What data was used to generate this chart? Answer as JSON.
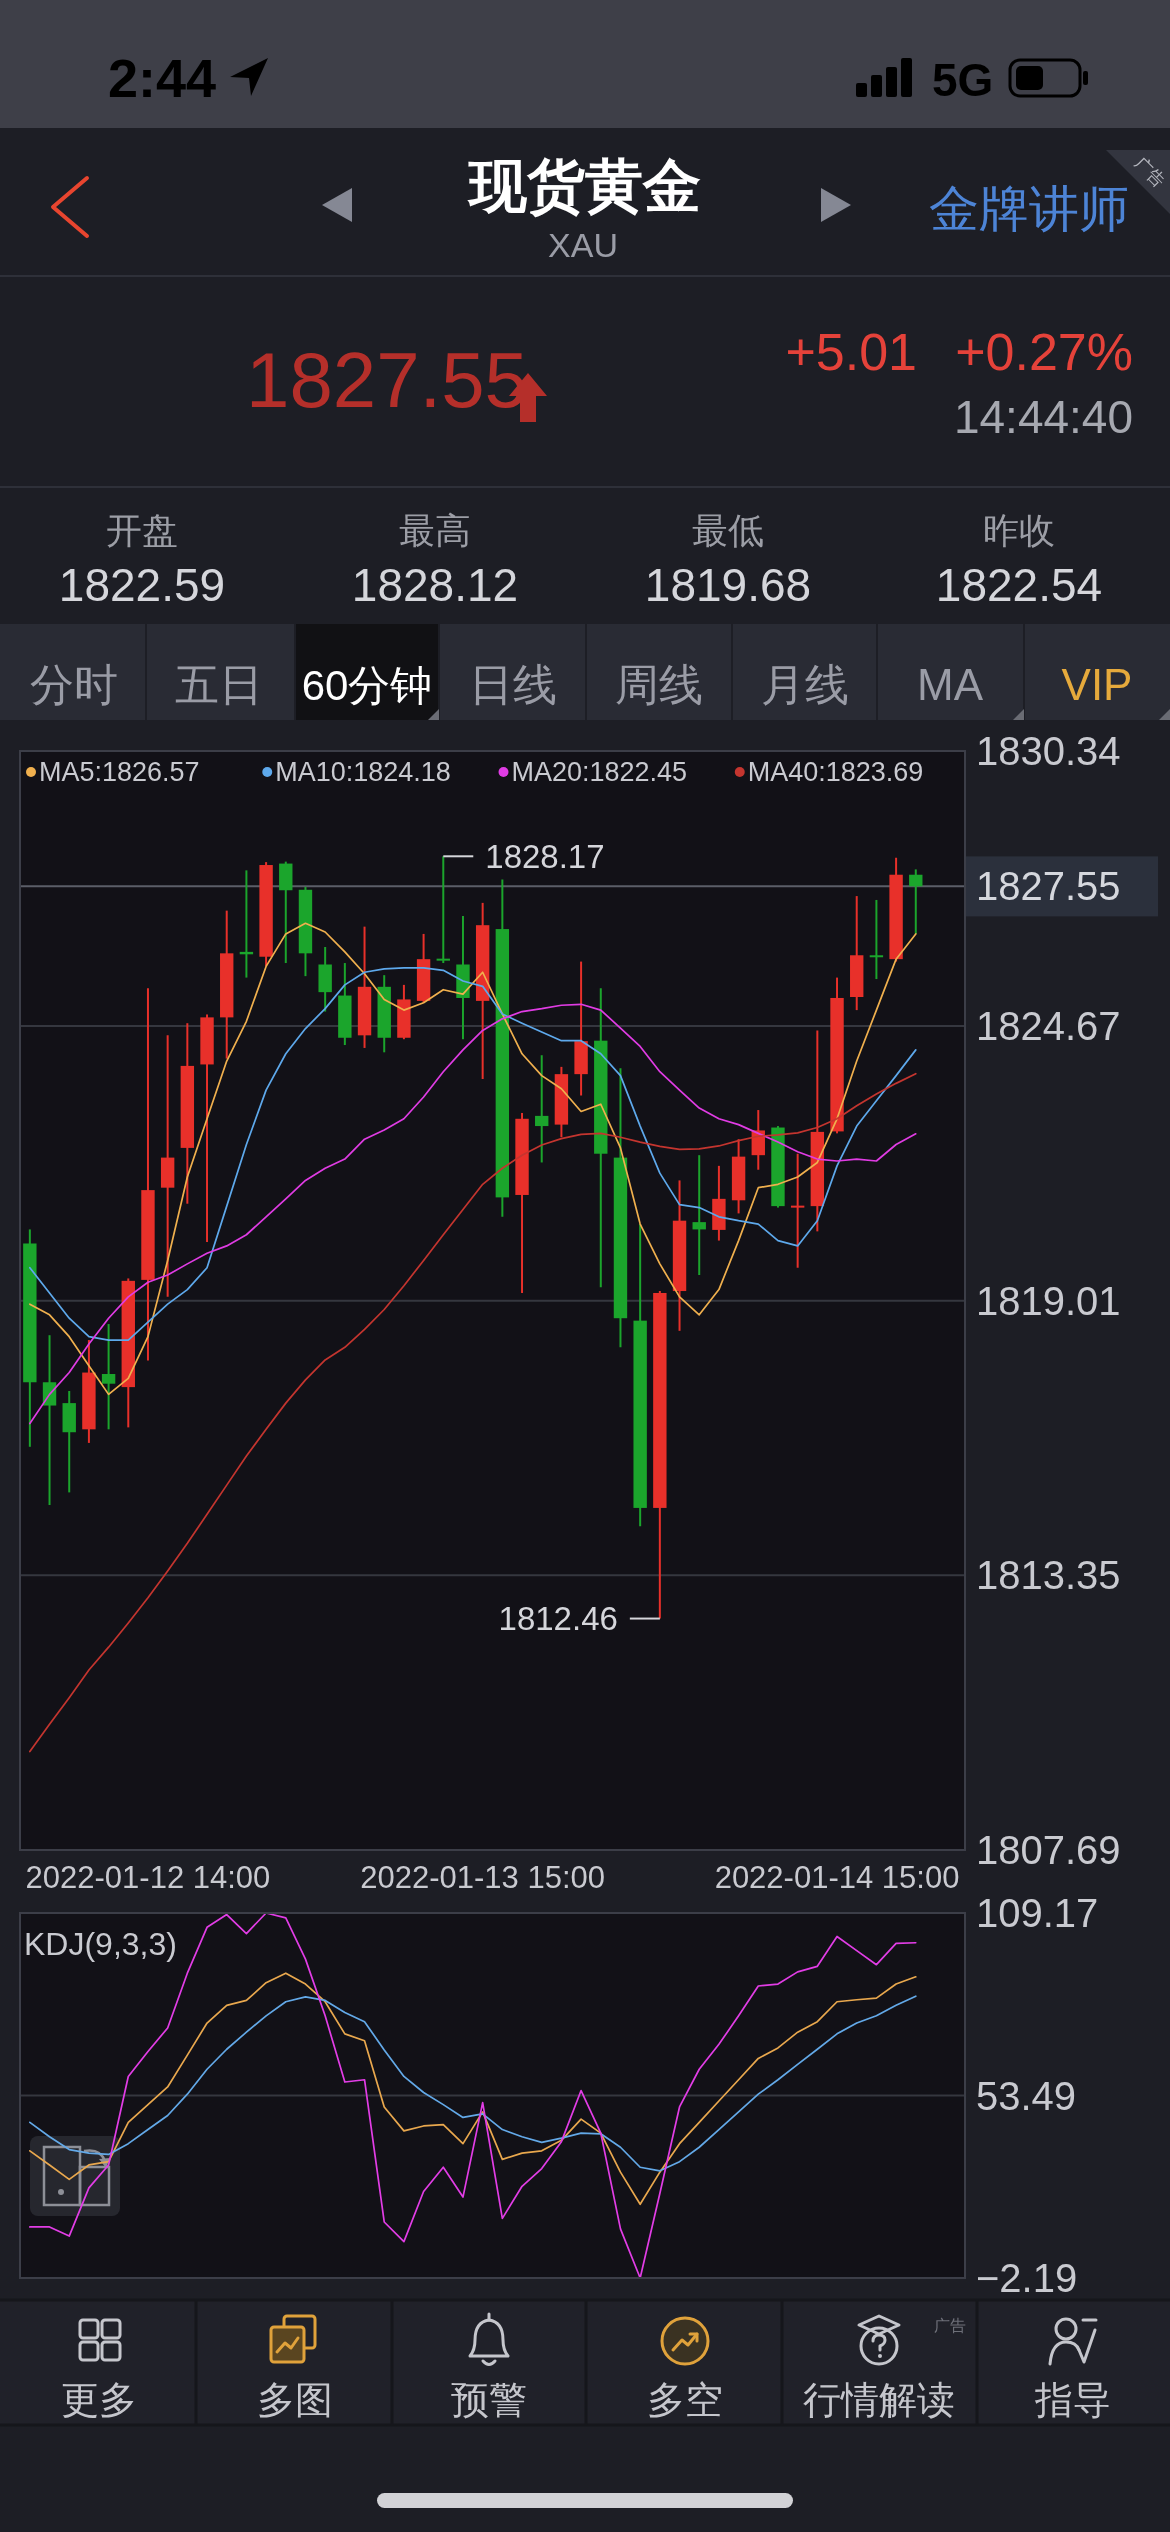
{
  "chart_data": [
    {
      "type": "other",
      "title": "现货黄金",
      "subtitle": "XAU",
      "annotations": [
        "2:44",
        "5G",
        "金牌讲师",
        "广告",
        "1827.55",
        "+5.01",
        "+0.27%",
        "14:44:40",
        "开盘",
        "1822.59",
        "最高",
        "1828.12",
        "最低",
        "1819.68",
        "昨收",
        "1822.54",
        "分时",
        "五日",
        "60分钟",
        "日线",
        "周线",
        "月线",
        "MA",
        "VIP"
      ]
    },
    {
      "type": "candlestick",
      "categories": [
        null,
        null,
        null,
        null,
        null,
        null,
        "2022-01-12 14:00",
        null,
        null,
        null,
        null,
        null,
        null,
        null,
        null,
        null,
        null,
        null,
        null,
        null,
        null,
        null,
        null,
        "2022-01-13 15:00",
        null,
        null,
        null,
        null,
        null,
        null,
        null,
        null,
        null,
        null,
        null,
        null,
        null,
        null,
        null,
        null,
        null,
        "2022-01-14 15:00",
        null,
        null,
        null,
        null
      ],
      "ohlc": [
        [
          1820.19,
          1820.48,
          1816.0,
          1817.33
        ],
        [
          1817.33,
          1818.3,
          1814.8,
          1816.85
        ],
        [
          1816.9,
          1817.15,
          1815.06,
          1816.3
        ],
        [
          1816.36,
          1818.2,
          1816.08,
          1817.53
        ],
        [
          1817.5,
          1818.53,
          1816.36,
          1817.3
        ],
        [
          1817.23,
          1819.47,
          1816.4,
          1819.42
        ],
        [
          1819.44,
          1825.45,
          1817.78,
          1821.29
        ],
        [
          1821.34,
          1824.48,
          1819.09,
          1821.96
        ],
        [
          1822.16,
          1824.73,
          1821.01,
          1823.85
        ],
        [
          1823.88,
          1824.91,
          1820.22,
          1824.85
        ],
        [
          1824.85,
          1827.05,
          1824.0,
          1826.17
        ],
        [
          1826.2,
          1827.88,
          1825.67,
          1826.15
        ],
        [
          1826.1,
          1828.05,
          1825.9,
          1827.99
        ],
        [
          1828.02,
          1828.06,
          1825.97,
          1827.47
        ],
        [
          1827.48,
          1827.54,
          1825.7,
          1826.17
        ],
        [
          1825.94,
          1826.3,
          1824.97,
          1825.37
        ],
        [
          1825.3,
          1825.97,
          1824.28,
          1824.43
        ],
        [
          1824.48,
          1826.72,
          1824.22,
          1825.48
        ],
        [
          1825.48,
          1825.72,
          1824.13,
          1824.43
        ],
        [
          1824.43,
          1825.52,
          1824.4,
          1825.22
        ],
        [
          1825.19,
          1826.57,
          1825.15,
          1826.05
        ],
        [
          1826.06,
          1828.17,
          1825.97,
          1826.03
        ],
        [
          1825.94,
          1826.94,
          1824.4,
          1825.25
        ],
        [
          1825.19,
          1827.21,
          1823.58,
          1826.75
        ],
        [
          1826.67,
          1827.69,
          1820.74,
          1821.14
        ],
        [
          1821.19,
          1822.88,
          1819.17,
          1822.76
        ],
        [
          1822.82,
          1824.07,
          1821.86,
          1822.61
        ],
        [
          1822.64,
          1823.83,
          1822.38,
          1823.68
        ],
        [
          1823.68,
          1826.0,
          1823.24,
          1824.36
        ],
        [
          1824.37,
          1825.45,
          1819.29,
          1822.04
        ],
        [
          1821.96,
          1823.8,
          1818.05,
          1818.65
        ],
        [
          1818.6,
          1820.59,
          1814.36,
          1814.74
        ],
        [
          1814.74,
          1819.21,
          1812.46,
          1819.17
        ],
        [
          1819.21,
          1821.49,
          1818.39,
          1820.66
        ],
        [
          1820.63,
          1822.01,
          1819.54,
          1820.48
        ],
        [
          1820.47,
          1821.79,
          1820.25,
          1821.11
        ],
        [
          1821.08,
          1822.34,
          1820.81,
          1821.98
        ],
        [
          1822.01,
          1822.94,
          1821.71,
          1822.52
        ],
        [
          1822.58,
          1822.61,
          1820.93,
          1820.96
        ],
        [
          1820.95,
          1822.04,
          1819.69,
          1820.97
        ],
        [
          1820.96,
          1824.58,
          1820.44,
          1822.49
        ],
        [
          1822.5,
          1825.67,
          1822.46,
          1825.25
        ],
        [
          1825.27,
          1827.35,
          1825.0,
          1826.13
        ],
        [
          1826.13,
          1827.27,
          1825.64,
          1826.1
        ],
        [
          1826.05,
          1828.14,
          1826.0,
          1827.79
        ],
        [
          1827.79,
          1827.9,
          1826.57,
          1827.55
        ]
      ],
      "series": [
        {
          "name": "MA5:1826.57",
          "color": "#f0b04e",
          "type": "line",
          "values": [
            1818.94,
            1818.72,
            1818.27,
            1817.67,
            1817.08,
            1817.41,
            1818.27,
            1819.84,
            1821.56,
            1822.76,
            1823.95,
            1824.77,
            1825.9,
            1826.57,
            1826.79,
            1826.61,
            1826.2,
            1825.75,
            1825.22,
            1825.0,
            1825.15,
            1825.42,
            1825.33,
            1825.78,
            1824.92,
            1824.1,
            1823.65,
            1823.38,
            1822.91,
            1823.06,
            1822.16,
            1820.59,
            1819.77,
            1819.09,
            1818.72,
            1819.24,
            1820.25,
            1821.34,
            1821.41,
            1821.56,
            1821.86,
            1822.76,
            1823.95,
            1825.0,
            1826.05,
            1826.57
          ]
        },
        {
          "name": "MA10:1824.18",
          "color": "#5ea9ec",
          "type": "line",
          "values": [
            1819.69,
            1819.17,
            1818.65,
            1818.27,
            1818.2,
            1818.2,
            1818.57,
            1818.94,
            1819.24,
            1819.69,
            1820.96,
            1822.23,
            1823.35,
            1824.1,
            1824.62,
            1825.03,
            1825.52,
            1825.78,
            1825.85,
            1825.87,
            1825.87,
            1825.82,
            1825.6,
            1825.49,
            1824.92,
            1824.73,
            1824.55,
            1824.37,
            1824.37,
            1824.1,
            1823.65,
            1822.61,
            1821.64,
            1820.99,
            1820.93,
            1820.74,
            1820.66,
            1820.59,
            1820.25,
            1820.14,
            1820.66,
            1821.79,
            1822.61,
            1823.13,
            1823.65,
            1824.18
          ]
        },
        {
          "name": "MA20:1822.45",
          "color": "#e03ce4",
          "type": "line",
          "values": [
            1816.48,
            1817.08,
            1817.53,
            1818.12,
            1818.65,
            1819.09,
            1819.39,
            1819.54,
            1819.77,
            1819.99,
            1820.14,
            1820.37,
            1820.74,
            1821.11,
            1821.49,
            1821.74,
            1821.93,
            1822.34,
            1822.53,
            1822.76,
            1823.21,
            1823.73,
            1824.18,
            1824.58,
            1824.82,
            1824.97,
            1825.03,
            1825.1,
            1825.12,
            1825.0,
            1824.63,
            1824.25,
            1823.73,
            1823.35,
            1822.98,
            1822.76,
            1822.64,
            1822.46,
            1822.28,
            1822.08,
            1821.93,
            1821.89,
            1821.93,
            1821.89,
            1822.23,
            1822.45
          ]
        },
        {
          "name": "MA40:1823.69",
          "color": "#c4352f",
          "type": "line",
          "values": [
            1809.72,
            1810.28,
            1810.83,
            1811.4,
            1811.87,
            1812.37,
            1812.89,
            1813.44,
            1814.01,
            1814.61,
            1815.21,
            1815.81,
            1816.36,
            1816.9,
            1817.38,
            1817.79,
            1818.05,
            1818.42,
            1818.83,
            1819.32,
            1819.84,
            1820.37,
            1820.89,
            1821.41,
            1821.74,
            1822.01,
            1822.22,
            1822.35,
            1822.44,
            1822.46,
            1822.38,
            1822.28,
            1822.19,
            1822.13,
            1822.14,
            1822.2,
            1822.31,
            1822.4,
            1822.43,
            1822.47,
            1822.58,
            1822.76,
            1823.03,
            1823.27,
            1823.49,
            1823.69
          ]
        }
      ],
      "ylim": [
        1807.69,
        1830.34
      ],
      "yticks": [
        1830.34,
        1824.67,
        1819.01,
        1813.35,
        1807.69
      ],
      "grid": "y",
      "legend": "top",
      "ref_lines": [
        {
          "axis": "y",
          "value": 1827.55,
          "label": "1827.55",
          "color": "#5b5e68"
        }
      ],
      "annotations": [
        "1828.17",
        "1812.46"
      ]
    },
    {
      "type": "line",
      "title": "KDJ(9,3,3)",
      "categories": [
        null,
        null,
        null,
        null,
        null,
        null,
        null,
        null,
        null,
        null,
        null,
        null,
        null,
        null,
        null,
        null,
        null,
        null,
        null,
        null,
        null,
        null,
        null,
        null,
        null,
        null,
        null,
        null,
        null,
        null,
        null,
        null,
        null,
        null,
        null,
        null,
        null,
        null,
        null,
        null,
        null,
        null,
        null,
        null,
        null,
        null
      ],
      "series": [
        {
          "color": "#e9a84e",
          "values": [
            36.6,
            32.3,
            27.9,
            32.3,
            33.3,
            45.3,
            50.7,
            56.1,
            65.8,
            75.6,
            81.0,
            82.5,
            87.9,
            90.8,
            87.5,
            82.1,
            72.3,
            70.2,
            50.0,
            42.7,
            44.2,
            44.6,
            38.8,
            48.5,
            34.0,
            35.9,
            36.6,
            39.8,
            46.3,
            42.0,
            30.1,
            20.3,
            30.1,
            38.8,
            45.3,
            51.8,
            58.3,
            64.8,
            68.0,
            72.8,
            76.0,
            82.1,
            82.7,
            83.2,
            87.5,
            89.7
          ]
        },
        {
          "color": "#63a9e8",
          "values": [
            45.3,
            40.9,
            37.0,
            35.9,
            35.5,
            38.8,
            43.1,
            47.4,
            53.9,
            61.5,
            67.6,
            72.8,
            77.8,
            82.1,
            83.6,
            82.5,
            78.8,
            76.0,
            67.4,
            59.3,
            54.4,
            50.7,
            46.8,
            47.9,
            43.1,
            40.9,
            39.2,
            40.5,
            42.0,
            41.8,
            37.7,
            31.6,
            30.5,
            33.3,
            37.7,
            43.1,
            48.5,
            53.9,
            58.3,
            63.0,
            67.6,
            72.3,
            75.6,
            77.8,
            81.0,
            83.8
          ]
        },
        {
          "color": "#e23de6",
          "values": [
            13.4,
            13.4,
            10.6,
            25.3,
            32.3,
            59.3,
            66.9,
            74.1,
            90.8,
            104.8,
            108.7,
            102.9,
            109.17,
            107.7,
            95.1,
            77.8,
            57.6,
            58.3,
            14.9,
            8.9,
            24.2,
            31.6,
            22.5,
            51.3,
            16.0,
            25.8,
            31.2,
            39.4,
            55.0,
            42.0,
            12.8,
            -2.19,
            23.6,
            50.0,
            61.5,
            69.1,
            77.8,
            86.9,
            87.5,
            91.2,
            92.9,
            102.0,
            97.7,
            93.4,
            99.9,
            100.1
          ]
        }
      ],
      "ylim": [
        -2.19,
        109.17
      ],
      "yticks": [
        109.17,
        53.49,
        {
          "value": -2.19,
          "label": "−2.19"
        }
      ],
      "grid": "y",
      "tick_labels": "y"
    },
    {
      "type": "other",
      "annotations": [
        "更多",
        "多图",
        "预警",
        "多空",
        "行情解读",
        "指导",
        "广告"
      ]
    }
  ]
}
